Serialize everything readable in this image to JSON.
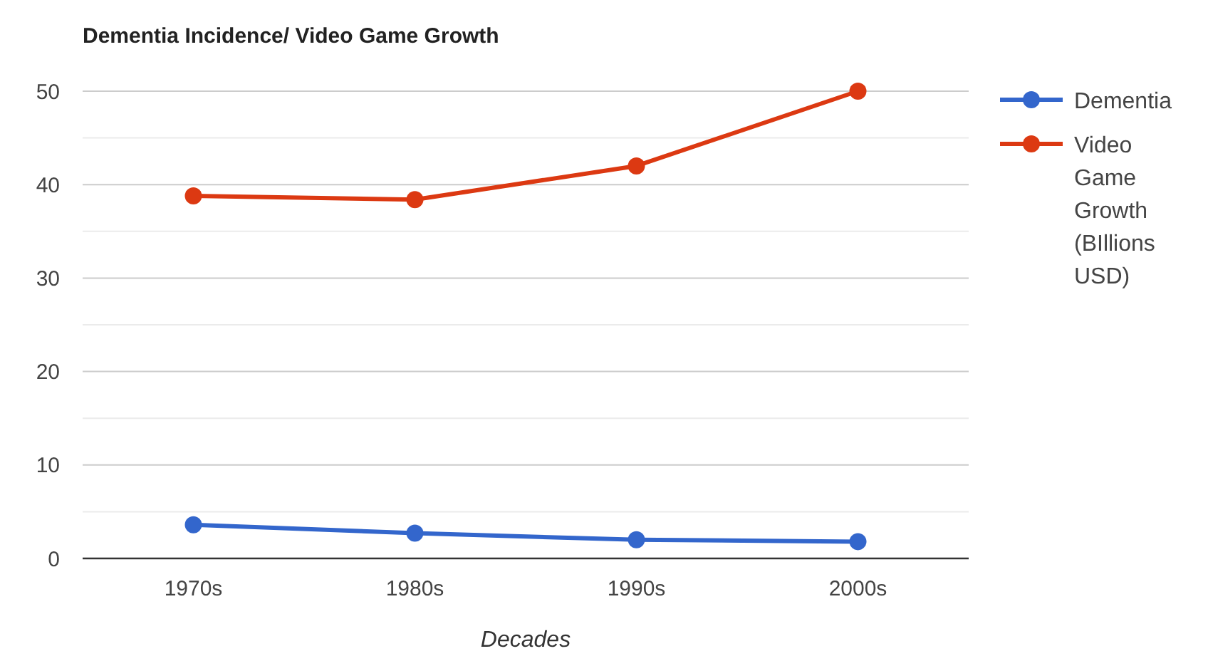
{
  "chart_data": {
    "type": "line",
    "title": "Dementia Incidence/ Video Game Growth",
    "xlabel": "Decades",
    "categories": [
      "1970s",
      "1980s",
      "1990s",
      "2000s"
    ],
    "series": [
      {
        "name": "Dementia",
        "color": "#3366cc",
        "values": [
          3.6,
          2.7,
          2.0,
          1.8
        ]
      },
      {
        "name": "Video Game Growth (BIllions USD)",
        "color": "#dc3912",
        "values": [
          38.8,
          38.4,
          42,
          50
        ]
      }
    ],
    "ylim": [
      0,
      50
    ],
    "yticks": [
      0,
      {
        "value": 5,
        "label": null
      },
      10,
      {
        "value": 15,
        "label": null
      },
      20,
      {
        "value": 25,
        "label": null
      },
      30,
      {
        "value": 35,
        "label": null
      },
      40,
      {
        "value": 45,
        "label": null
      },
      50
    ],
    "grid": true,
    "legend": "right",
    "marker": "circle",
    "line_style": "solid"
  }
}
